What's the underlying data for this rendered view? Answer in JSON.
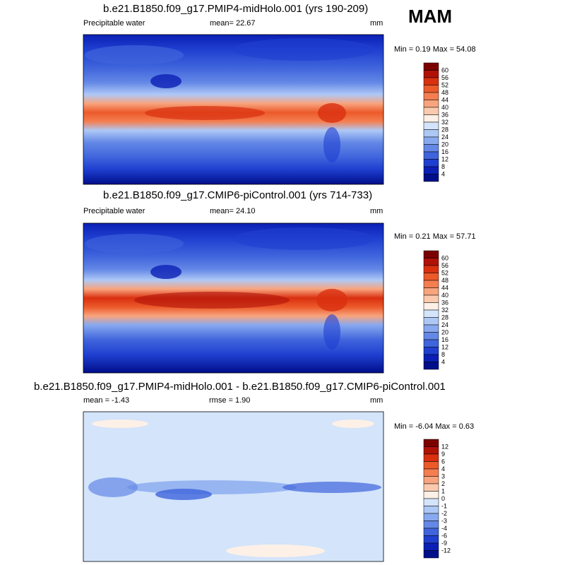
{
  "season": "MAM",
  "chart_data": [
    {
      "type": "heatmap",
      "title": "b.e21.B1850.f09_g17.PMIP4-midHolo.001 (yrs 190-209)",
      "variable": "Precipitable water",
      "stat_left": "mean=  22.67",
      "units": "mm",
      "minmax": "Min =   0.19 Max =  54.08",
      "colorbar": {
        "labels": [
          "60",
          "56",
          "52",
          "48",
          "44",
          "40",
          "36",
          "32",
          "28",
          "24",
          "20",
          "16",
          "12",
          "8",
          "4"
        ],
        "colors": [
          "#7a0000",
          "#b01208",
          "#d93010",
          "#ec5a2a",
          "#f47e50",
          "#f8a47e",
          "#fbcaae",
          "#fdf0e6",
          "#d3e4fb",
          "#aec8f6",
          "#88a9ef",
          "#6488e6",
          "#3f64dc",
          "#1f3fd0",
          "#0b1fb5",
          "#000e8a"
        ]
      }
    },
    {
      "type": "heatmap",
      "title": "b.e21.B1850.f09_g17.CMIP6-piControl.001 (yrs 714-733)",
      "variable": "Precipitable water",
      "stat_left": "mean=  24.10",
      "units": "mm",
      "minmax": "Min =   0.21 Max =  57.71",
      "colorbar": {
        "labels": [
          "60",
          "56",
          "52",
          "48",
          "44",
          "40",
          "36",
          "32",
          "28",
          "24",
          "20",
          "16",
          "12",
          "8",
          "4"
        ],
        "colors": [
          "#7a0000",
          "#b01208",
          "#d93010",
          "#ec5a2a",
          "#f47e50",
          "#f8a47e",
          "#fbcaae",
          "#fdf0e6",
          "#d3e4fb",
          "#aec8f6",
          "#88a9ef",
          "#6488e6",
          "#3f64dc",
          "#1f3fd0",
          "#0b1fb5",
          "#000e8a"
        ]
      }
    },
    {
      "type": "heatmap",
      "title": "b.e21.B1850.f09_g17.PMIP4-midHolo.001 - b.e21.B1850.f09_g17.CMIP6-piControl.001",
      "stat_left": "mean =  -1.43",
      "stat_mid": "rmse =   1.90",
      "units": "mm",
      "minmax": "Min =  -6.04 Max =   0.63",
      "colorbar": {
        "labels": [
          "12",
          "9",
          "6",
          "4",
          "3",
          "2",
          "1",
          "0",
          "-1",
          "-2",
          "-3",
          "-4",
          "-6",
          "-9",
          "-12"
        ],
        "colors": [
          "#7a0000",
          "#b01208",
          "#d93010",
          "#ec5a2a",
          "#f47e50",
          "#f8a47e",
          "#fbcaae",
          "#fdf0e6",
          "#d3e4fb",
          "#aec8f6",
          "#88a9ef",
          "#6488e6",
          "#3f64dc",
          "#1f3fd0",
          "#0b1fb5",
          "#000e8a"
        ]
      }
    }
  ]
}
